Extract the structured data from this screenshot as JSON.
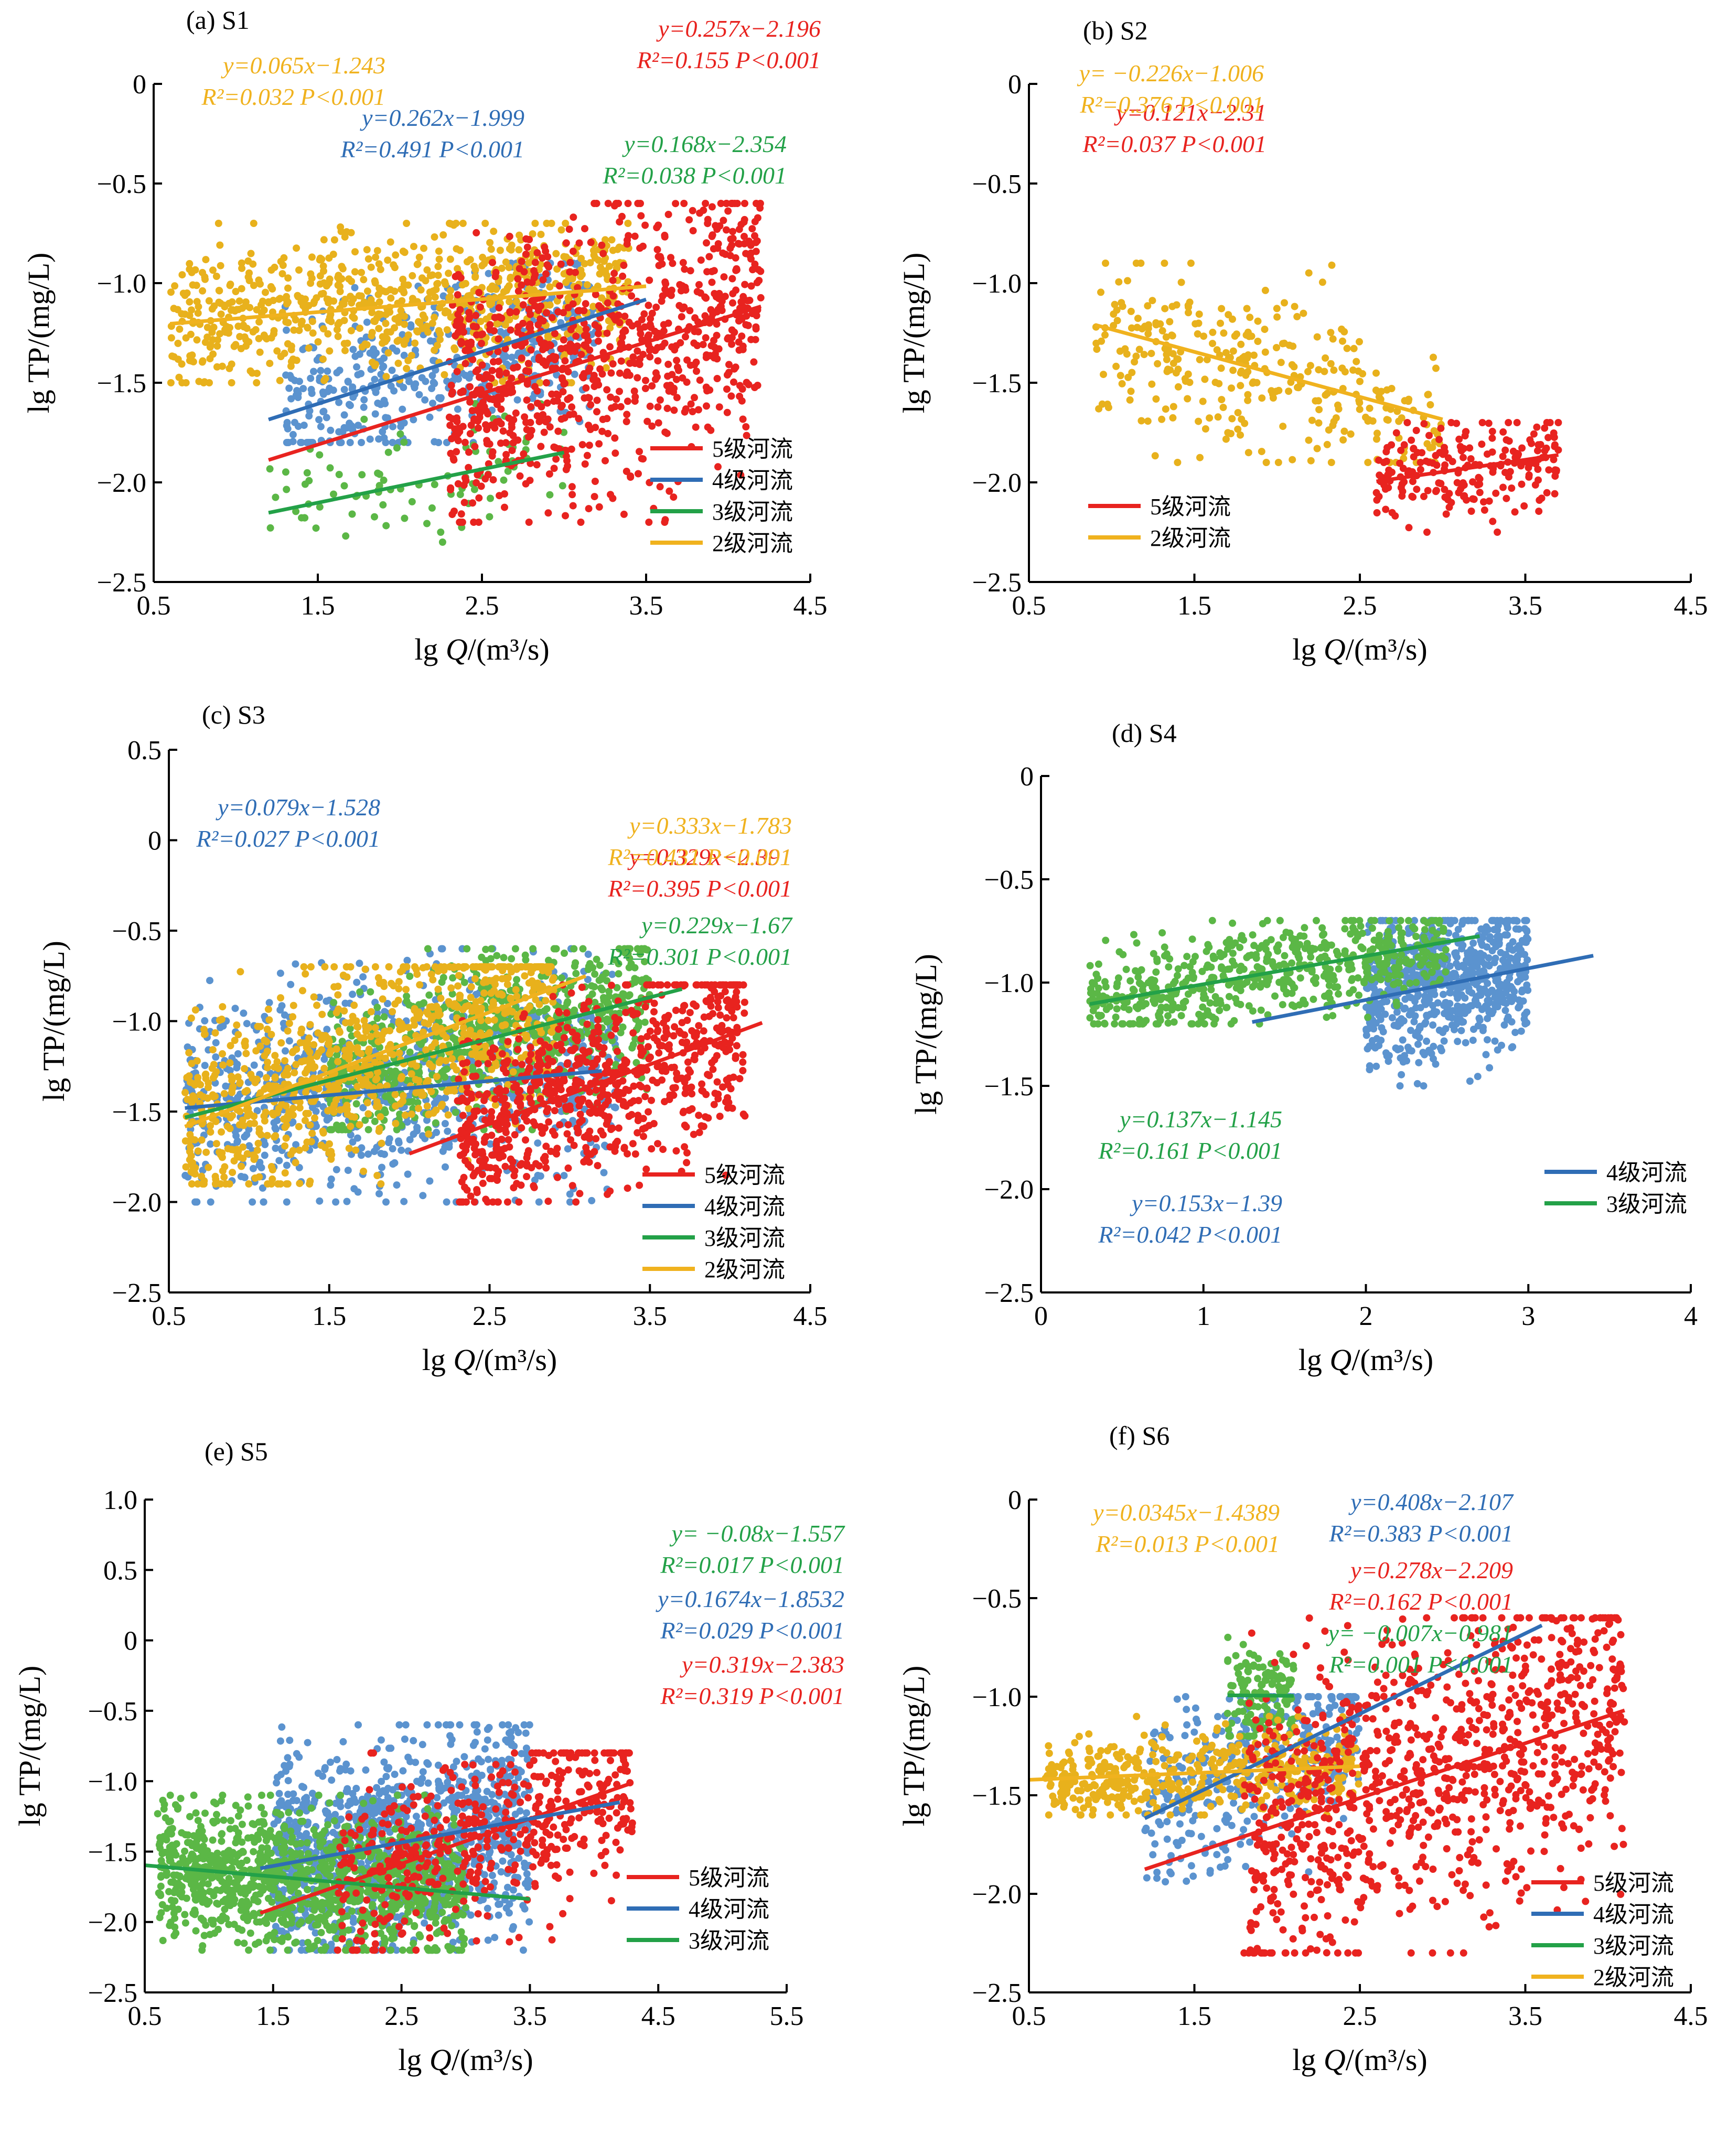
{
  "figure": {
    "colors": {
      "red": "#e8231f",
      "blue": "#2f6db5",
      "blue_points": "#5b93cf",
      "green": "#23a148",
      "green_points": "#5bb746",
      "yellow": "#f0b21e",
      "yellow_points": "#e8b11c"
    },
    "axis_labels": {
      "x_prefix": "lg ",
      "x_var": "Q",
      "x_unit": "/(m³/s)",
      "y": "lg TP/(mg/L)"
    }
  },
  "chart_data": [
    {
      "panel": "(a) S1",
      "type": "scatter",
      "xlim": [
        0.5,
        4.5
      ],
      "ylim": [
        -2.5,
        0
      ],
      "xticks": [
        "0.5",
        "1.5",
        "2.5",
        "3.5",
        "4.5"
      ],
      "yticks": [
        "0",
        "−0.5",
        "−1.0",
        "−1.5",
        "−2.0",
        "−2.5"
      ],
      "legend": [
        "5级河流",
        "4级河流",
        "3级河流",
        "2级河流"
      ],
      "legend_position": "bottom-right",
      "series": [
        {
          "name": "5级河流",
          "color": "red",
          "fit": {
            "slope": 0.257,
            "intercept": -2.196,
            "x_range": [
              1.2,
              4.2
            ]
          },
          "eq": "y=0.257x−2.196",
          "stats": "R²=0.155 P<0.001",
          "cloud": {
            "x": [
              2.3,
              4.2
            ],
            "y": [
              -2.2,
              -0.6
            ],
            "n": 900
          }
        },
        {
          "name": "4级河流",
          "color": "blue",
          "fit": {
            "slope": 0.262,
            "intercept": -1.999,
            "x_range": [
              1.2,
              3.5
            ]
          },
          "eq": "y=0.262x−1.999",
          "stats": "R²=0.491 P<0.001",
          "cloud": {
            "x": [
              1.3,
              3.2
            ],
            "y": [
              -1.8,
              -0.9
            ],
            "n": 450
          }
        },
        {
          "name": "3级河流",
          "color": "green",
          "fit": {
            "slope": 0.168,
            "intercept": -2.354,
            "x_range": [
              1.2,
              3.0
            ]
          },
          "eq": "y=0.168x−2.354",
          "stats": "R²=0.038 P<0.001",
          "cloud": {
            "x": [
              1.2,
              3.0
            ],
            "y": [
              -2.3,
              -1.5
            ],
            "n": 90
          }
        },
        {
          "name": "2级河流",
          "color": "yellow",
          "fit": {
            "slope": 0.065,
            "intercept": -1.243,
            "x_range": [
              0.6,
              3.5
            ]
          },
          "eq": "y=0.065x−1.243",
          "stats": "R²=0.032 P<0.001",
          "cloud": {
            "x": [
              0.6,
              3.4
            ],
            "y": [
              -1.5,
              -0.7
            ],
            "n": 800
          }
        }
      ]
    },
    {
      "panel": "(b) S2",
      "type": "scatter",
      "xlim": [
        0.5,
        4.5
      ],
      "ylim": [
        -2.5,
        0
      ],
      "xticks": [
        "0.5",
        "1.5",
        "2.5",
        "3.5",
        "4.5"
      ],
      "yticks": [
        "0",
        "−0.5",
        "−1.0",
        "−1.5",
        "−2.0",
        "−2.5"
      ],
      "legend": [
        "5级河流",
        "2级河流"
      ],
      "legend_position": "bottom-left",
      "series": [
        {
          "name": "5级河流",
          "color": "red",
          "fit": {
            "slope": 0.121,
            "intercept": -2.31,
            "x_range": [
              2.6,
              3.7
            ]
          },
          "eq": "y=0.121x−2.31",
          "stats": "R²=0.037 P<0.001",
          "cloud": {
            "x": [
              2.6,
              3.7
            ],
            "y": [
              -2.25,
              -1.7
            ],
            "n": 220
          }
        },
        {
          "name": "2级河流",
          "color": "yellow",
          "fit": {
            "slope": -0.226,
            "intercept": -1.006,
            "x_range": [
              0.9,
              3.0
            ]
          },
          "eq": "y= −0.226x−1.006",
          "stats": "R²=0.376 P<0.001",
          "cloud": {
            "x": [
              0.9,
              3.0
            ],
            "y": [
              -1.9,
              -0.9
            ],
            "n": 320
          }
        }
      ]
    },
    {
      "panel": "(c) S3",
      "type": "scatter",
      "xlim": [
        0.5,
        4.5
      ],
      "ylim": [
        -2.5,
        0.5
      ],
      "xticks": [
        "0.5",
        "1.5",
        "2.5",
        "3.5",
        "4.5"
      ],
      "yticks": [
        "0.5",
        "0",
        "−0.5",
        "−1.0",
        "−1.5",
        "−2.0",
        "−2.5"
      ],
      "legend": [
        "5级河流",
        "4级河流",
        "3级河流",
        "2级河流"
      ],
      "legend_position": "bottom-right",
      "series": [
        {
          "name": "5级河流",
          "color": "red",
          "fit": {
            "slope": 0.329,
            "intercept": -2.391,
            "x_range": [
              2.0,
              4.2
            ]
          },
          "eq": "y=0.329x−2.391",
          "stats": "R²=0.395 P<0.001",
          "cloud": {
            "x": [
              2.3,
              4.1
            ],
            "y": [
              -2.0,
              -0.8
            ],
            "n": 800
          }
        },
        {
          "name": "4级河流",
          "color": "blue",
          "fit": {
            "slope": 0.079,
            "intercept": -1.528,
            "x_range": [
              0.6,
              3.2
            ]
          },
          "eq": "y=0.079x−1.528",
          "stats": "R²=0.027 P<0.001",
          "cloud": {
            "x": [
              0.6,
              3.3
            ],
            "y": [
              -2.0,
              -0.6
            ],
            "n": 800
          }
        },
        {
          "name": "3级河流",
          "color": "green",
          "fit": {
            "slope": 0.229,
            "intercept": -1.67,
            "x_range": [
              0.6,
              3.7
            ]
          },
          "eq": "y=0.229x−1.67",
          "stats": "R²=0.301 P<0.001",
          "cloud": {
            "x": [
              1.5,
              3.5
            ],
            "y": [
              -1.6,
              -0.6
            ],
            "n": 700
          }
        },
        {
          "name": "2级河流",
          "color": "yellow",
          "fit": {
            "slope": 0.333,
            "intercept": -1.783,
            "x_range": [
              0.6,
              3.1
            ]
          },
          "eq": "y=0.333x−1.783",
          "stats": "R²=0.431 P<0.001",
          "cloud": {
            "x": [
              0.6,
              2.9
            ],
            "y": [
              -1.9,
              -0.7
            ],
            "n": 900
          }
        }
      ]
    },
    {
      "panel": "(d) S4",
      "type": "scatter",
      "xlim": [
        0,
        4
      ],
      "ylim": [
        -2.5,
        0
      ],
      "xticks": [
        "0",
        "1",
        "2",
        "3",
        "4"
      ],
      "yticks": [
        "0",
        "−0.5",
        "−1.0",
        "−1.5",
        "−2.0",
        "−2.5"
      ],
      "legend": [
        "4级河流",
        "3级河流"
      ],
      "legend_position": "bottom-right",
      "series": [
        {
          "name": "4级河流",
          "color": "blue",
          "fit": {
            "slope": 0.153,
            "intercept": -1.39,
            "x_range": [
              1.3,
              3.4
            ]
          },
          "eq": "y=0.153x−1.39",
          "stats": "R²=0.042 P<0.001",
          "cloud": {
            "x": [
              2.0,
              3.0
            ],
            "y": [
              -1.5,
              -0.7
            ],
            "n": 700
          }
        },
        {
          "name": "3级河流",
          "color": "green",
          "fit": {
            "slope": 0.137,
            "intercept": -1.145,
            "x_range": [
              0.3,
              2.7
            ]
          },
          "eq": "y=0.137x−1.145",
          "stats": "R²=0.161 P<0.001",
          "cloud": {
            "x": [
              0.3,
              2.5
            ],
            "y": [
              -1.2,
              -0.7
            ],
            "n": 600
          }
        }
      ]
    },
    {
      "panel": "(e) S5",
      "type": "scatter",
      "xlim": [
        0.5,
        5.5
      ],
      "ylim": [
        -2.5,
        1.0
      ],
      "xticks": [
        "0.5",
        "1.5",
        "2.5",
        "3.5",
        "4.5",
        "5.5"
      ],
      "yticks": [
        "1.0",
        "0.5",
        "0",
        "−0.5",
        "−1.0",
        "−1.5",
        "−2.0",
        "−2.5"
      ],
      "legend": [
        "5级河流",
        "4级河流",
        "3级河流"
      ],
      "legend_position": "bottom-right",
      "series": [
        {
          "name": "5级河流",
          "color": "red",
          "fit": {
            "slope": 0.319,
            "intercept": -2.383,
            "x_range": [
              1.4,
              4.3
            ]
          },
          "eq": "y=0.319x−2.383",
          "stats": "R²=0.319 P<0.001",
          "cloud": {
            "x": [
              2.0,
              4.3
            ],
            "y": [
              -2.2,
              -0.8
            ],
            "n": 500
          }
        },
        {
          "name": "4级河流",
          "color": "blue",
          "fit": {
            "slope": 0.1674,
            "intercept": -1.8532,
            "x_range": [
              1.4,
              4.2
            ]
          },
          "eq": "y=0.1674x−1.8532",
          "stats": "R²=0.029 P<0.001",
          "cloud": {
            "x": [
              1.5,
              3.5
            ],
            "y": [
              -2.2,
              -0.6
            ],
            "n": 1100
          }
        },
        {
          "name": "3级河流",
          "color": "green",
          "fit": {
            "slope": -0.08,
            "intercept": -1.557,
            "x_range": [
              0.5,
              3.5
            ]
          },
          "eq": "y= −0.08x−1.557",
          "stats": "R²=0.017 P<0.001",
          "cloud": {
            "x": [
              0.6,
              3.0
            ],
            "y": [
              -2.2,
              -1.1
            ],
            "n": 1100
          }
        }
      ]
    },
    {
      "panel": "(f) S6",
      "type": "scatter",
      "xlim": [
        0.5,
        4.5
      ],
      "ylim": [
        -2.5,
        0
      ],
      "xticks": [
        "0.5",
        "1.5",
        "2.5",
        "3.5",
        "4.5"
      ],
      "yticks": [
        "0",
        "−0.5",
        "−1.0",
        "−1.5",
        "−2.0",
        "−2.5"
      ],
      "legend": [
        "5级河流",
        "4级河流",
        "3级河流",
        "2级河流"
      ],
      "legend_position": "bottom-right",
      "series": [
        {
          "name": "5级河流",
          "color": "red",
          "fit": {
            "slope": 0.278,
            "intercept": -2.209,
            "x_range": [
              1.2,
              4.1
            ]
          },
          "eq": "y=0.278x−2.209",
          "stats": "R²=0.162 P<0.001",
          "cloud": {
            "x": [
              1.8,
              4.1
            ],
            "y": [
              -2.3,
              -0.6
            ],
            "n": 1000
          }
        },
        {
          "name": "4级河流",
          "color": "blue",
          "fit": {
            "slope": 0.408,
            "intercept": -2.107,
            "x_range": [
              1.2,
              3.6
            ]
          },
          "eq": "y=0.408x−2.107",
          "stats": "R²=0.383 P<0.001",
          "cloud": {
            "x": [
              1.2,
              2.5
            ],
            "y": [
              -2.0,
              -1.0
            ],
            "n": 350
          }
        },
        {
          "name": "3级河流",
          "color": "green",
          "fit": {
            "slope": -0.007,
            "intercept": -0.981,
            "x_range": [
              1.7,
              2.1
            ]
          },
          "eq": "y= −0.007x−0.981",
          "stats": "R²=0.001 P<0.001",
          "cloud": {
            "x": [
              1.7,
              2.1
            ],
            "y": [
              -1.2,
              -0.65
            ],
            "n": 150
          }
        },
        {
          "name": "2级河流",
          "color": "yellow",
          "fit": {
            "slope": 0.0345,
            "intercept": -1.4389,
            "x_range": [
              0.5,
              2.5
            ]
          },
          "eq": "y=0.0345x−1.4389",
          "stats": "R²=0.013 P<0.001",
          "cloud": {
            "x": [
              0.6,
              2.5
            ],
            "y": [
              -1.6,
              -1.1
            ],
            "n": 450
          }
        }
      ]
    }
  ]
}
